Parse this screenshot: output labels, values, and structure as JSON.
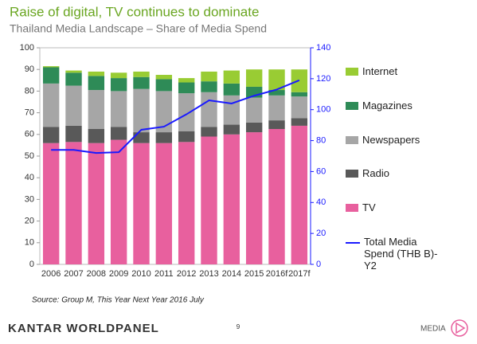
{
  "chart_data": {
    "type": "bar",
    "stacked": true,
    "title": "Raise of digital, TV continues to dominate",
    "subtitle": "Thailand Media Landscape – Share of Media Spend",
    "categories": [
      "2006",
      "2007",
      "2008",
      "2009",
      "2010",
      "2011",
      "2012",
      "2013",
      "2014",
      "2015",
      "2016f",
      "2017f"
    ],
    "series": [
      {
        "name": "TV",
        "color": "#e8609e",
        "values": [
          56,
          56.5,
          56,
          57.5,
          56,
          56,
          56.5,
          59,
          60,
          61,
          62.5,
          64
        ]
      },
      {
        "name": "Radio",
        "color": "#595959",
        "values": [
          7.5,
          7.5,
          6.5,
          6,
          5,
          5,
          5,
          4.5,
          4.5,
          4.5,
          4,
          3.5
        ]
      },
      {
        "name": "Newspapers",
        "color": "#a6a6a6",
        "values": [
          20,
          18.5,
          18,
          16.5,
          20,
          19,
          17.5,
          16,
          13.5,
          11.5,
          11.5,
          10
        ]
      },
      {
        "name": "Magazines",
        "color": "#2e8b57",
        "values": [
          7.5,
          6,
          6.5,
          6,
          5.5,
          5.5,
          5,
          5,
          5.5,
          5,
          2.5,
          2
        ]
      },
      {
        "name": "Internet",
        "color": "#99cc33",
        "values": [
          0.5,
          1,
          2,
          2.5,
          2.5,
          2,
          2,
          4.5,
          6,
          8,
          9.5,
          10.5
        ]
      },
      {
        "name": "Total Media Spend (THB B)-Y2",
        "type": "line",
        "axis": "y2",
        "color": "#1a1aff",
        "values": [
          74,
          74,
          72,
          72.5,
          87,
          89,
          97,
          106,
          104,
          109,
          113,
          119
        ]
      }
    ],
    "ylim": [
      0,
      100
    ],
    "yticks": [
      0,
      10,
      20,
      30,
      40,
      50,
      60,
      70,
      80,
      90,
      100
    ],
    "y2lim": [
      0,
      140
    ],
    "y2ticks": [
      0,
      20,
      40,
      60,
      80,
      100,
      120,
      140
    ],
    "grid": false,
    "legend": "right"
  },
  "source": "Source: Group M, This Year Next Year 2016 July",
  "footer": {
    "brand": "KANTAR WORLDPANEL",
    "page": "9",
    "section": "MEDIA"
  }
}
